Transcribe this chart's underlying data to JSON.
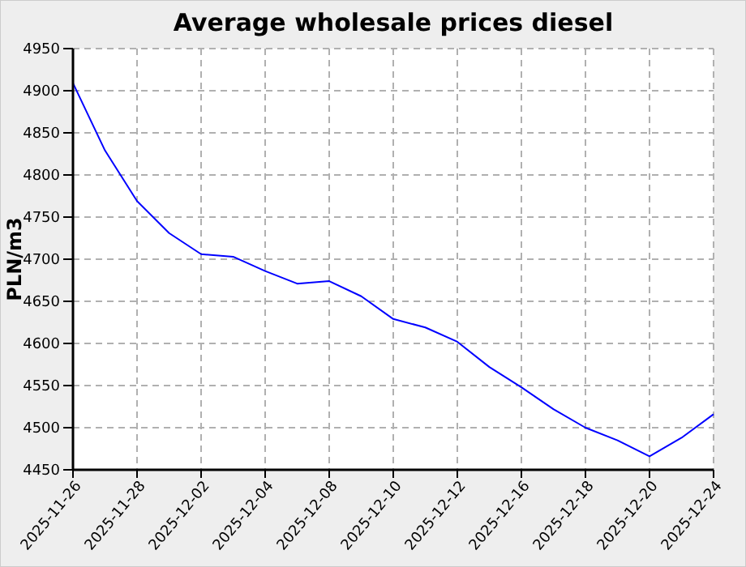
{
  "chart_data": {
    "type": "line",
    "title": "Average wholesale prices diesel",
    "ylabel": "PLN/m3",
    "categories": [
      "2025-11-26",
      null,
      "2025-11-28",
      null,
      "2025-12-02",
      null,
      "2025-12-04",
      null,
      "2025-12-08",
      null,
      "2025-12-10",
      null,
      "2025-12-12",
      null,
      "2025-12-16",
      null,
      "2025-12-18",
      null,
      "2025-12-20",
      null,
      "2025-12-24"
    ],
    "series": [
      {
        "color": "#0000ff",
        "values": [
          4909,
          4829,
          4769,
          4731,
          4706,
          4703,
          4686,
          4671,
          4674,
          4656,
          4629,
          4619,
          4602,
          4572,
          4548,
          4522,
          4500,
          4485,
          4466,
          4488,
          4516
        ]
      }
    ],
    "ylim": [
      4450,
      4950
    ],
    "yticks": [
      4450,
      4500,
      4550,
      4600,
      4650,
      4700,
      4750,
      4800,
      4850,
      4900,
      4950
    ],
    "grid": true,
    "line_style": "solid",
    "marker": "none"
  }
}
